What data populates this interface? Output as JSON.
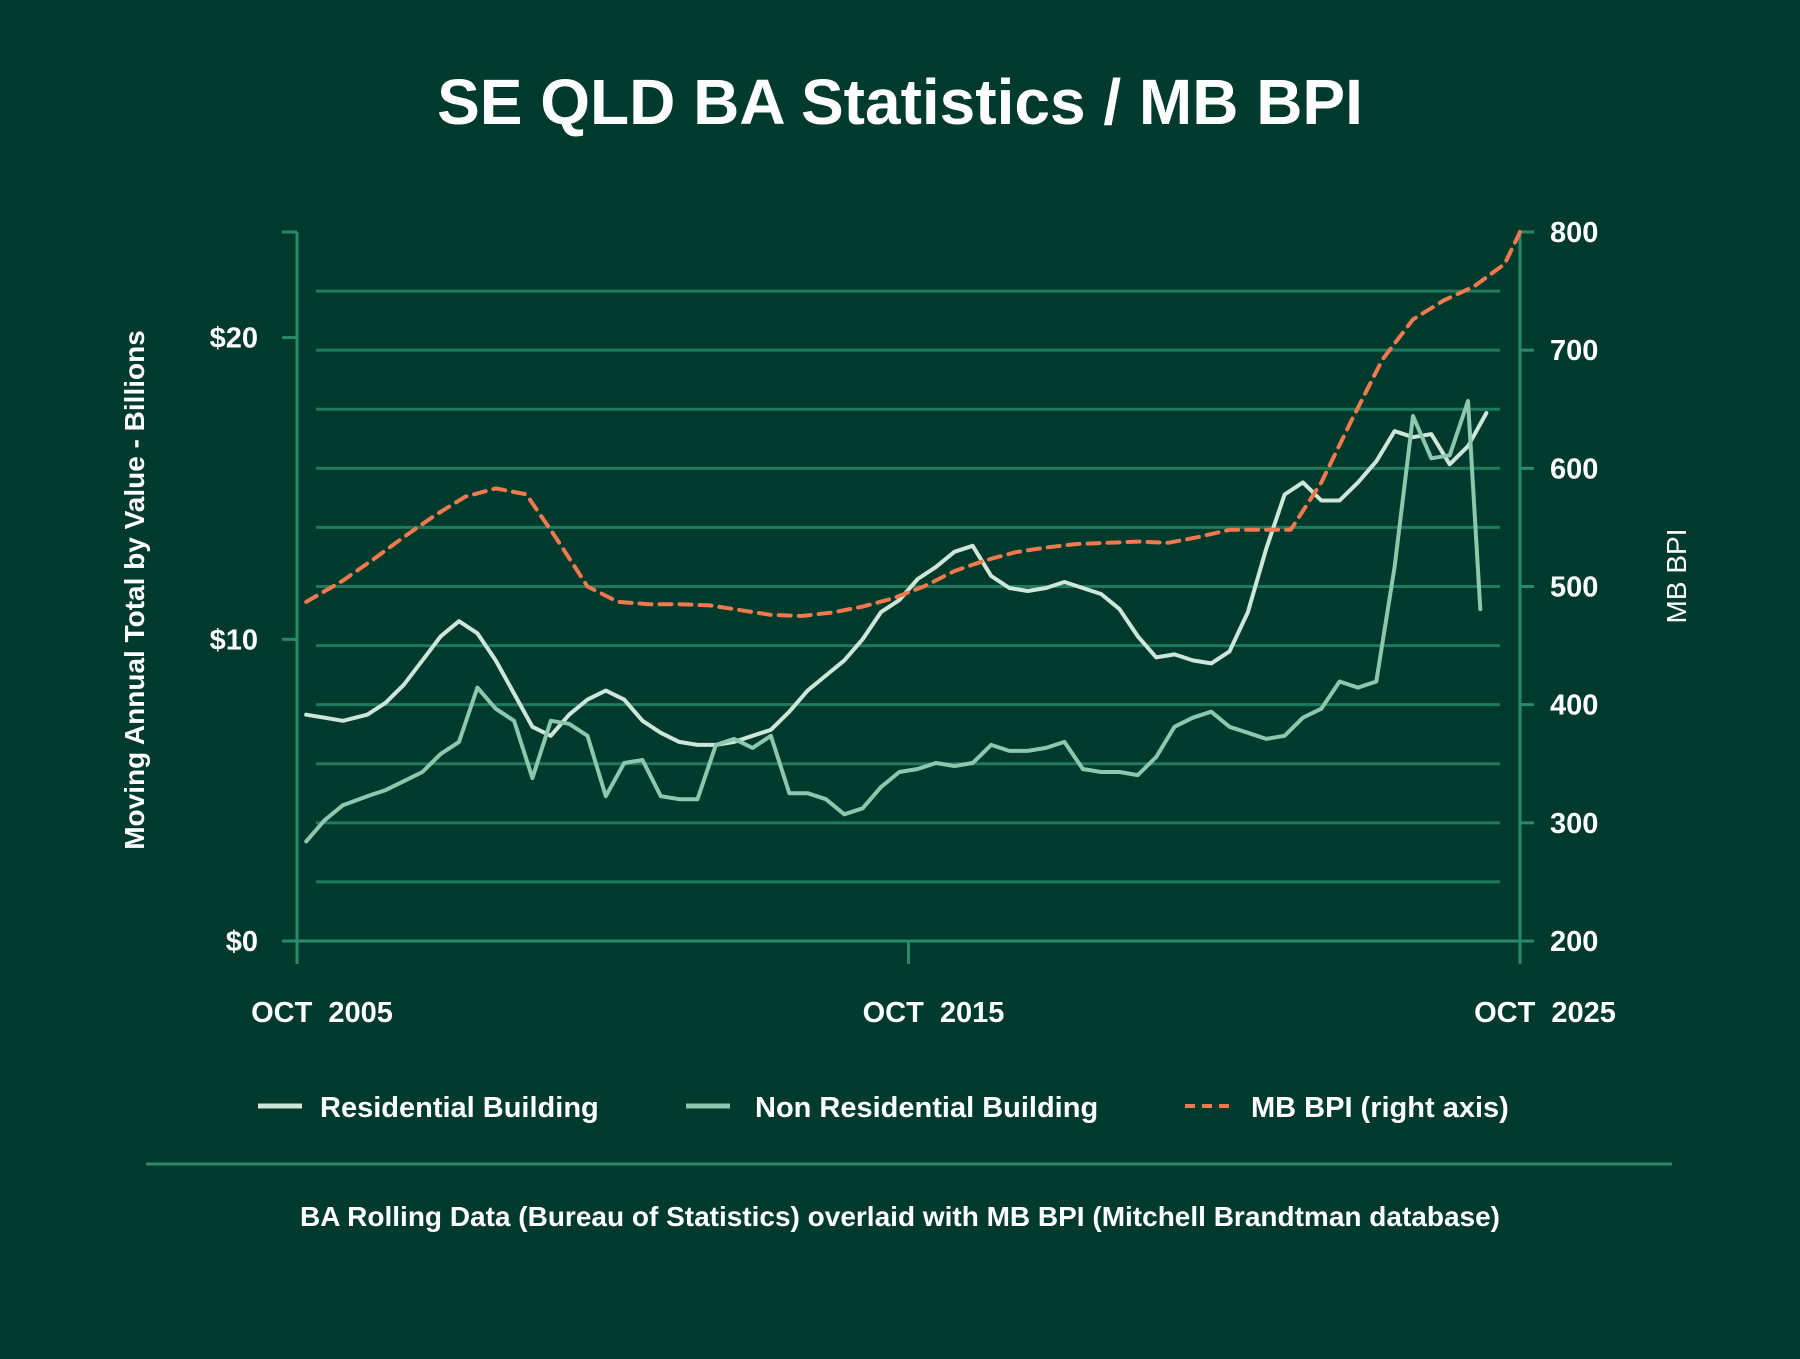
{
  "colors": {
    "background": "#003a2d",
    "grid": "#1e7a5c",
    "axis": "#2a8a68",
    "residential": "#cfe6da",
    "non_residential": "#8dc7ad",
    "mb_bpi": "#f07a4e",
    "text": "#ffffff"
  },
  "chart_data": {
    "type": "line",
    "title": "SE QLD BA Statistics / MB BPI",
    "ylabel": "Moving Annual Total by Value - Billions",
    "y2label": "MB BPI",
    "ylim": [
      0,
      23.5
    ],
    "y2lim": [
      200,
      800
    ],
    "xlim": [
      2005.75,
      2025.75
    ],
    "x_ticks": [
      {
        "x": 2005.75,
        "label": "OCT 2005"
      },
      {
        "x": 2015.75,
        "label": "OCT 2015"
      },
      {
        "x": 2025.75,
        "label": "OCT 2025"
      }
    ],
    "y_ticks": [
      {
        "value": 0,
        "label": "$0"
      },
      {
        "value": 10,
        "label": "$10"
      },
      {
        "value": 20,
        "label": "$20"
      }
    ],
    "y2_ticks": [
      {
        "value": 200,
        "label": "200"
      },
      {
        "value": 300,
        "label": "300"
      },
      {
        "value": 400,
        "label": "400"
      },
      {
        "value": 500,
        "label": "500"
      },
      {
        "value": 600,
        "label": "600"
      },
      {
        "value": 700,
        "label": "700"
      },
      {
        "value": 800,
        "label": "800"
      }
    ],
    "grid": true,
    "legend_placement": "bottom",
    "series": [
      {
        "name": "Residential Building",
        "axis": "left",
        "x": [
          2005.9,
          2006.2,
          2006.5,
          2006.9,
          2007.2,
          2007.5,
          2007.8,
          2008.1,
          2008.4,
          2008.7,
          2009.0,
          2009.3,
          2009.6,
          2009.9,
          2010.2,
          2010.5,
          2010.8,
          2011.1,
          2011.4,
          2011.7,
          2012.0,
          2012.3,
          2012.6,
          2012.9,
          2013.2,
          2013.5,
          2013.8,
          2014.1,
          2014.4,
          2014.7,
          2015.0,
          2015.3,
          2015.6,
          2015.9,
          2016.2,
          2016.5,
          2016.8,
          2017.1,
          2017.4,
          2017.7,
          2018.0,
          2018.3,
          2018.6,
          2018.9,
          2019.2,
          2019.5,
          2019.8,
          2020.1,
          2020.4,
          2020.7,
          2021.0,
          2021.3,
          2021.6,
          2021.9,
          2022.2,
          2022.5,
          2022.8,
          2023.1,
          2023.4,
          2023.7,
          2024.0,
          2024.3,
          2024.6,
          2024.9,
          2025.2
        ],
        "values": [
          7.5,
          7.4,
          7.3,
          7.5,
          7.9,
          8.5,
          9.3,
          10.1,
          10.6,
          10.2,
          9.3,
          8.2,
          7.1,
          6.8,
          7.5,
          8.0,
          8.3,
          8.0,
          7.3,
          6.9,
          6.6,
          6.5,
          6.5,
          6.6,
          6.8,
          7.0,
          7.6,
          8.3,
          8.8,
          9.3,
          10.0,
          10.9,
          11.3,
          12.0,
          12.4,
          12.9,
          13.1,
          12.1,
          11.7,
          11.6,
          11.7,
          11.9,
          11.7,
          11.5,
          11.0,
          10.1,
          9.4,
          9.5,
          9.3,
          9.2,
          9.6,
          10.9,
          13.0,
          14.8,
          15.2,
          14.6,
          14.6,
          15.2,
          15.9,
          16.9,
          16.7,
          16.8,
          15.8,
          16.4,
          17.5
        ]
      },
      {
        "name": "Non Residential Building",
        "axis": "left",
        "x": [
          2005.9,
          2006.2,
          2006.5,
          2006.9,
          2007.2,
          2007.5,
          2007.8,
          2008.1,
          2008.4,
          2008.7,
          2009.0,
          2009.3,
          2009.6,
          2009.9,
          2010.2,
          2010.5,
          2010.8,
          2011.1,
          2011.4,
          2011.7,
          2012.0,
          2012.3,
          2012.6,
          2012.9,
          2013.2,
          2013.5,
          2013.8,
          2014.1,
          2014.4,
          2014.7,
          2015.0,
          2015.3,
          2015.6,
          2015.9,
          2016.2,
          2016.5,
          2016.8,
          2017.1,
          2017.4,
          2017.7,
          2018.0,
          2018.3,
          2018.6,
          2018.9,
          2019.2,
          2019.5,
          2019.8,
          2020.1,
          2020.4,
          2020.7,
          2021.0,
          2021.3,
          2021.6,
          2021.9,
          2022.2,
          2022.5,
          2022.8,
          2023.1,
          2023.4,
          2023.7,
          2024.0,
          2024.3,
          2024.6,
          2024.9,
          2025.1
        ],
        "values": [
          3.3,
          4.0,
          4.5,
          4.8,
          5.0,
          5.3,
          5.6,
          6.2,
          6.6,
          8.4,
          7.7,
          7.3,
          5.4,
          7.3,
          7.2,
          6.8,
          4.8,
          5.9,
          6.0,
          4.8,
          4.7,
          4.7,
          6.5,
          6.7,
          6.4,
          6.8,
          4.9,
          4.9,
          4.7,
          4.2,
          4.4,
          5.1,
          5.6,
          5.7,
          5.9,
          5.8,
          5.9,
          6.5,
          6.3,
          6.3,
          6.4,
          6.6,
          5.7,
          5.6,
          5.6,
          5.5,
          6.1,
          7.1,
          7.4,
          7.6,
          7.1,
          6.9,
          6.7,
          6.8,
          7.4,
          7.7,
          8.6,
          8.4,
          8.6,
          12.4,
          17.4,
          16.0,
          16.1,
          17.9,
          11.0
        ]
      },
      {
        "name": "MB BPI (right axis)",
        "axis": "right",
        "dashed": true,
        "x": [
          2005.9,
          2006.5,
          2007.0,
          2007.5,
          2008.0,
          2008.5,
          2009.0,
          2009.5,
          2010.0,
          2010.5,
          2011.0,
          2011.5,
          2012.0,
          2012.5,
          2013.0,
          2013.5,
          2014.0,
          2014.5,
          2015.0,
          2015.5,
          2016.0,
          2016.5,
          2017.0,
          2017.5,
          2018.0,
          2018.5,
          2019.0,
          2019.5,
          2020.0,
          2020.5,
          2021.0,
          2021.5,
          2022.0,
          2022.5,
          2023.0,
          2023.5,
          2024.0,
          2024.5,
          2025.0,
          2025.5,
          2025.75
        ],
        "values": [
          487,
          505,
          523,
          542,
          560,
          576,
          583,
          578,
          540,
          500,
          487,
          485,
          485,
          484,
          480,
          476,
          475,
          478,
          483,
          490,
          500,
          513,
          522,
          529,
          533,
          536,
          537,
          538,
          537,
          542,
          548,
          548,
          548,
          588,
          641,
          692,
          726,
          742,
          754,
          773,
          800
        ]
      }
    ]
  },
  "legend": {
    "residential": "Residential Building",
    "non_residential": "Non Residential Building",
    "mb_bpi": "MB BPI (right axis)"
  },
  "footnote": "BA Rolling Data (Bureau of Statistics) overlaid with MB BPI (Mitchell Brandtman database)"
}
